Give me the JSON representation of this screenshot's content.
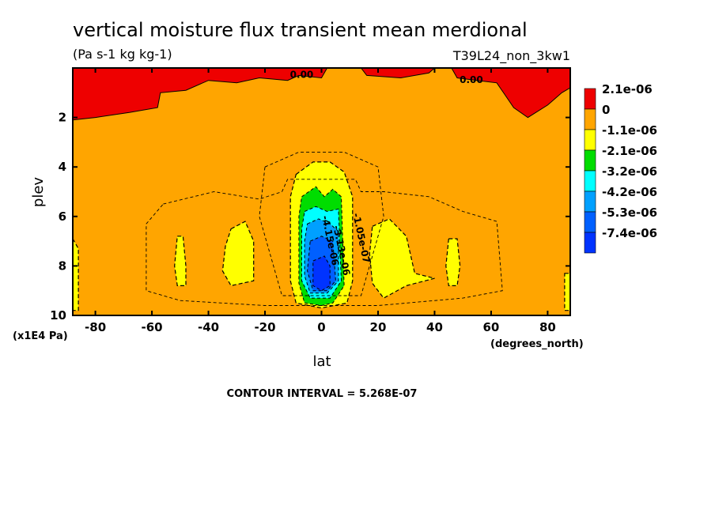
{
  "chart_data": {
    "type": "heatmap",
    "title": "vertical moisture flux transient mean merdional",
    "units": "(Pa s-1 kg kg-1)",
    "run_label": "T39L24_non_3kw1",
    "xlabel": "lat",
    "x_units": "(degrees_north)",
    "ylabel": "plev",
    "y_units": "(x1E4 Pa)",
    "xlim": [
      -88,
      88
    ],
    "ylim": [
      10,
      0
    ],
    "x_ticks": [
      -80,
      -60,
      -40,
      -20,
      0,
      20,
      40,
      60,
      80
    ],
    "x_tick_labels": [
      "-80",
      "-60",
      "-40",
      "-20",
      "0",
      "20",
      "40",
      "60",
      "80"
    ],
    "y_ticks": [
      2,
      4,
      6,
      8,
      10
    ],
    "y_tick_labels": [
      "2",
      "4",
      "6",
      "8",
      "10"
    ],
    "legend": {
      "placement": "right",
      "levels": [
        {
          "label": "2.1e-06",
          "color": "#ee0000"
        },
        {
          "label": "0",
          "color": "#ffa500"
        },
        {
          "label": "-1.1e-06",
          "color": "#ffff00"
        },
        {
          "label": "-2.1e-06",
          "color": "#00dd00"
        },
        {
          "label": "-3.2e-06",
          "color": "#00ffff"
        },
        {
          "label": "-4.2e-06",
          "color": "#00a0ff"
        },
        {
          "label": "-5.3e-06",
          "color": "#0060ff"
        },
        {
          "label": "-7.4e-06",
          "color": "#0033ff"
        }
      ]
    },
    "contour_labels": [
      "0.00",
      "0.00",
      "-1.05e-07",
      "-3.13e-06",
      "-4.15e-06"
    ],
    "contour_interval_text": "CONTOUR INTERVAL = 5.268E-07"
  }
}
